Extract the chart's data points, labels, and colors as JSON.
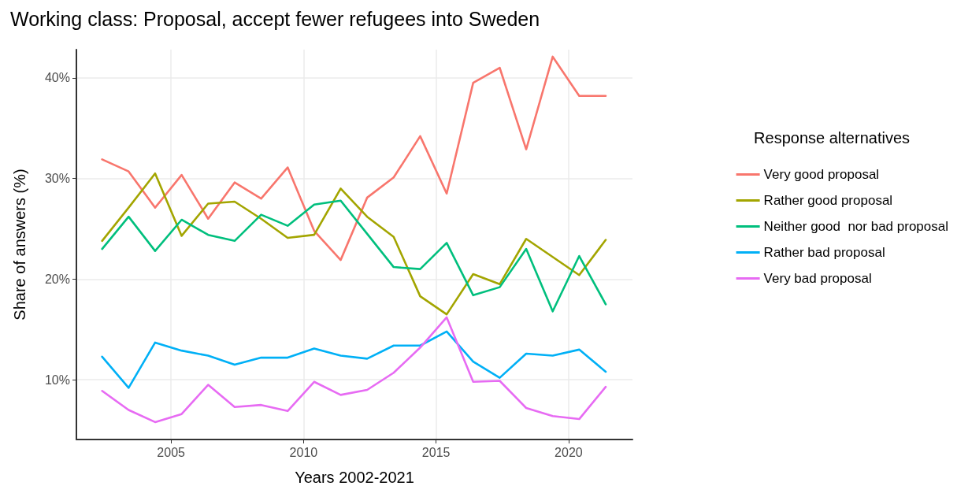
{
  "chart_data": {
    "type": "line",
    "title": "Working class: Proposal, accept fewer refugees into Sweden",
    "xlabel": "Years 2002-2021",
    "ylabel": "Share of answers (%)",
    "legend_title": "Response alternatives",
    "x": [
      2002.4,
      2003.4,
      2004.4,
      2005.4,
      2006.4,
      2007.4,
      2008.4,
      2009.4,
      2010.4,
      2011.4,
      2012.4,
      2013.4,
      2014.4,
      2015.4,
      2016.4,
      2017.4,
      2018.4,
      2019.4,
      2020.4,
      2021.4
    ],
    "series": [
      {
        "name": "Very good proposal",
        "color": "#f8766d",
        "values": [
          31.9,
          30.7,
          27.1,
          30.35,
          26.0,
          29.6,
          28.0,
          31.1,
          24.8,
          21.9,
          28.1,
          30.1,
          34.2,
          28.5,
          39.5,
          41.0,
          32.9,
          42.1,
          38.2,
          38.2
        ]
      },
      {
        "name": "Rather good proposal",
        "color": "#a3a500",
        "values": [
          23.8,
          27.1,
          30.5,
          24.3,
          27.5,
          27.7,
          26.0,
          24.1,
          24.4,
          29.0,
          26.2,
          24.2,
          18.3,
          16.5,
          20.5,
          19.5,
          24.0,
          22.2,
          20.4,
          23.9
        ]
      },
      {
        "name": "Neither good  nor bad proposal",
        "color": "#00bf7d",
        "values": [
          23.0,
          26.2,
          22.8,
          25.9,
          24.4,
          23.8,
          26.4,
          25.3,
          27.4,
          27.8,
          24.5,
          21.2,
          21.0,
          23.6,
          18.4,
          19.2,
          23.0,
          16.8,
          22.3,
          17.5
        ]
      },
      {
        "name": "Rather bad proposal",
        "color": "#00b0f6",
        "values": [
          12.3,
          9.2,
          13.7,
          12.9,
          12.4,
          11.5,
          12.2,
          12.2,
          13.1,
          12.4,
          12.1,
          13.4,
          13.4,
          14.8,
          11.8,
          10.2,
          12.6,
          12.4,
          13.0,
          10.8
        ]
      },
      {
        "name": "Very bad proposal",
        "color": "#e76bf3",
        "values": [
          8.9,
          7.0,
          5.8,
          6.6,
          9.5,
          7.3,
          7.5,
          6.9,
          9.8,
          8.5,
          9.0,
          10.7,
          13.2,
          16.2,
          9.8,
          9.9,
          7.2,
          6.4,
          6.1,
          9.3
        ]
      }
    ],
    "xlim": [
      2001.43,
      2022.41
    ],
    "xticks": [
      2005,
      2010,
      2015,
      2020
    ],
    "ylim": [
      4.07,
      42.8
    ],
    "yticks": [
      {
        "value": 10,
        "label": "10%"
      },
      {
        "value": 20,
        "label": "20%"
      },
      {
        "value": 30,
        "label": "30%"
      },
      {
        "value": 40,
        "label": "40%"
      }
    ],
    "grid": true,
    "legend": "right",
    "marker": "none",
    "line_style": "solid"
  }
}
